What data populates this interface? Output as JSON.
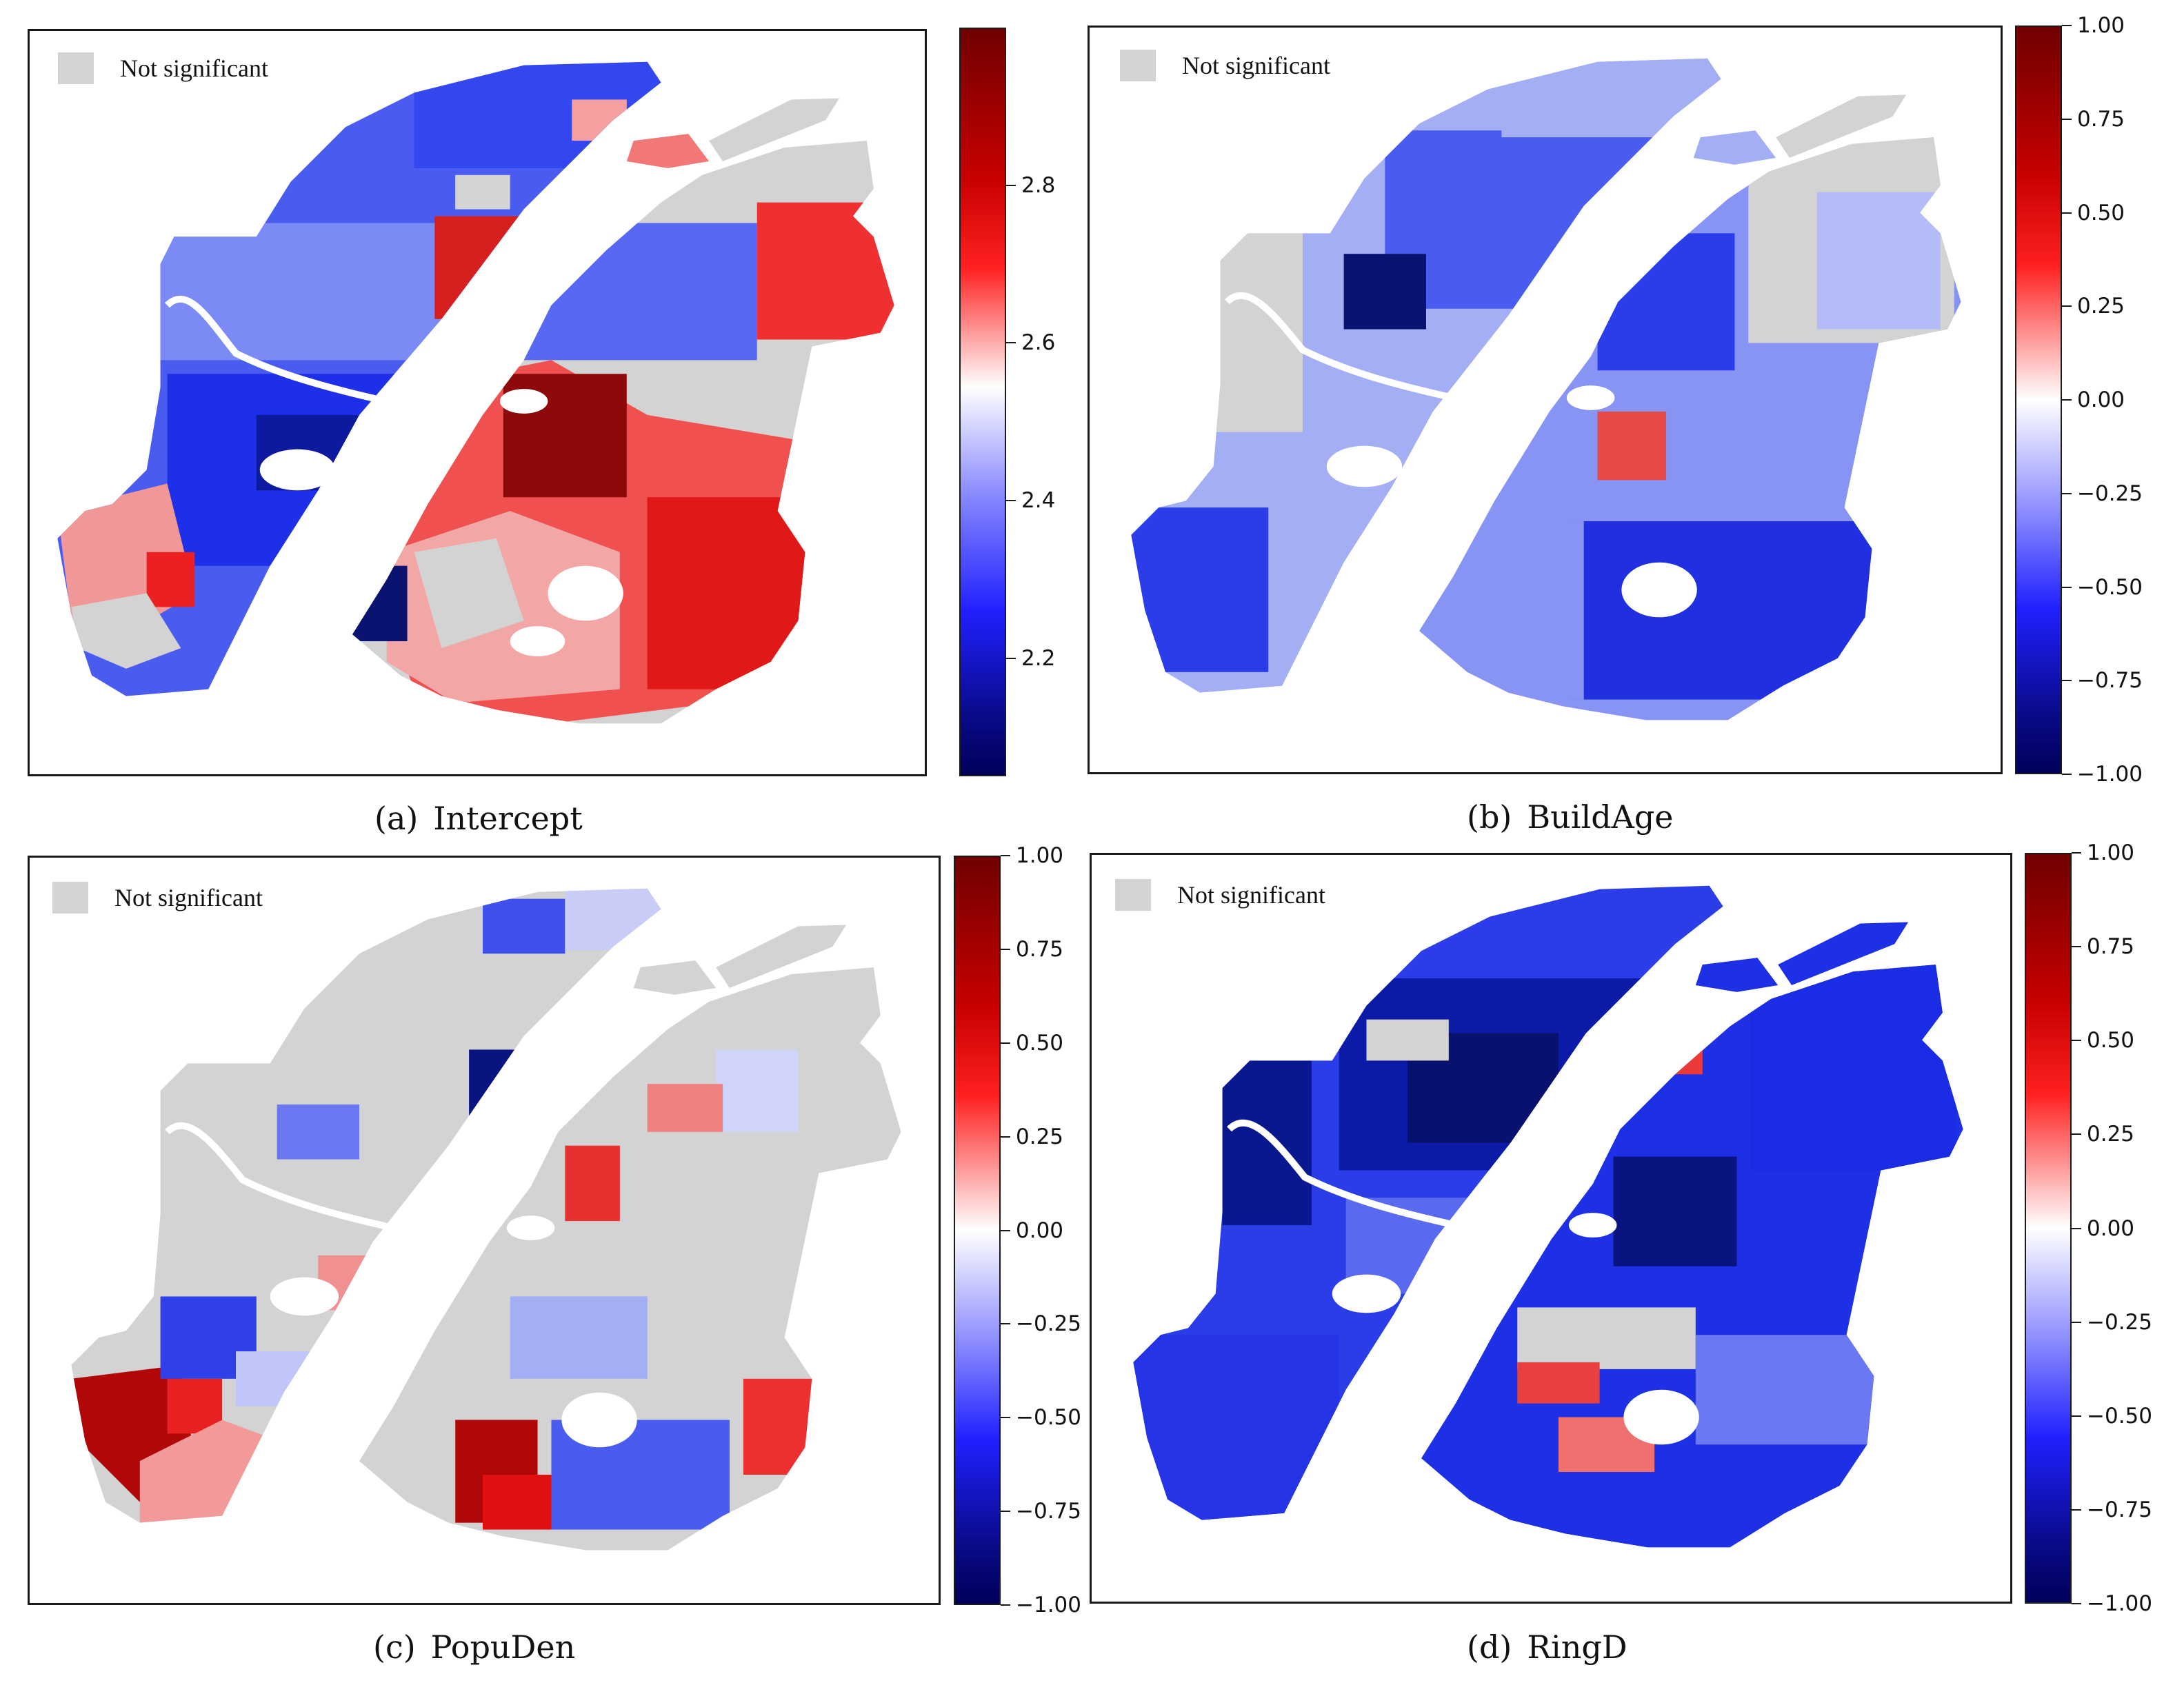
{
  "figure": {
    "legend_label": "Not significant",
    "colors": {
      "not_significant": "#d3d3d3",
      "colormap_low": "#00005a",
      "colormap_mid": "#ffffff",
      "colormap_high": "#700000",
      "river": "#ffffff"
    },
    "panels": [
      {
        "id": "a",
        "tag": "(a)",
        "title": "Intercept",
        "colorbar": {
          "min": 2.05,
          "max": 3.0,
          "ticks": [
            "2.2",
            "2.4",
            "2.6",
            "2.8"
          ],
          "tick_values": [
            2.2,
            2.4,
            2.6,
            2.8
          ]
        }
      },
      {
        "id": "b",
        "tag": "(b)",
        "title": "BuildAge",
        "colorbar": {
          "min": -1.0,
          "max": 1.0,
          "ticks": [
            "1.00",
            "0.75",
            "0.50",
            "0.25",
            "0.00",
            "−0.25",
            "−0.50",
            "−0.75",
            "−1.00"
          ],
          "tick_values": [
            1.0,
            0.75,
            0.5,
            0.25,
            0.0,
            -0.25,
            -0.5,
            -0.75,
            -1.0
          ]
        }
      },
      {
        "id": "c",
        "tag": "(c)",
        "title": "PopuDen",
        "colorbar": {
          "min": -1.0,
          "max": 1.0,
          "ticks": [
            "1.00",
            "0.75",
            "0.50",
            "0.25",
            "0.00",
            "−0.25",
            "−0.50",
            "−0.75",
            "−1.00"
          ],
          "tick_values": [
            1.0,
            0.75,
            0.5,
            0.25,
            0.0,
            -0.25,
            -0.5,
            -0.75,
            -1.0
          ]
        }
      },
      {
        "id": "d",
        "tag": "(d)",
        "title": "RingD",
        "colorbar": {
          "min": -1.0,
          "max": 1.0,
          "ticks": [
            "1.00",
            "0.75",
            "0.50",
            "0.25",
            "0.00",
            "−0.25",
            "−0.50",
            "−0.75",
            "−1.00"
          ],
          "tick_values": [
            1.0,
            0.75,
            0.5,
            0.25,
            0.0,
            -0.25,
            -0.5,
            -0.75,
            -1.0
          ]
        }
      }
    ]
  }
}
